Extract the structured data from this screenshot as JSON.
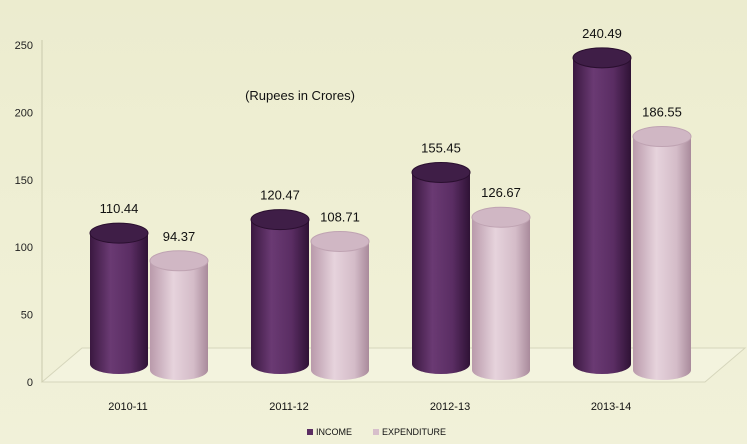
{
  "chart_data": {
    "type": "bar",
    "subtitle": "(Rupees in Crores)",
    "categories": [
      "2010-11",
      "2011-12",
      "2012-13",
      "2013-14"
    ],
    "series": [
      {
        "name": "INCOME",
        "values": [
          110.44,
          120.47,
          155.45,
          240.49
        ],
        "labels": [
          "110.44",
          "120.47",
          "155.45",
          "240.49"
        ],
        "color": "#5b2d63"
      },
      {
        "name": "EXPENDITURE",
        "values": [
          94.37,
          108.71,
          126.67,
          186.55
        ],
        "labels": [
          "94.37",
          "108.71",
          "126.67",
          "186.55"
        ],
        "color": "#d7bfcb"
      }
    ],
    "y_ticks": [
      "0",
      "50",
      "100",
      "150",
      "200",
      "250"
    ],
    "ylim": [
      0,
      250
    ],
    "xlabel": "",
    "ylabel": "",
    "grid": false,
    "legend_position": "bottom",
    "highlight_color": "#1f7a1f",
    "highlight_label": "108.71"
  }
}
